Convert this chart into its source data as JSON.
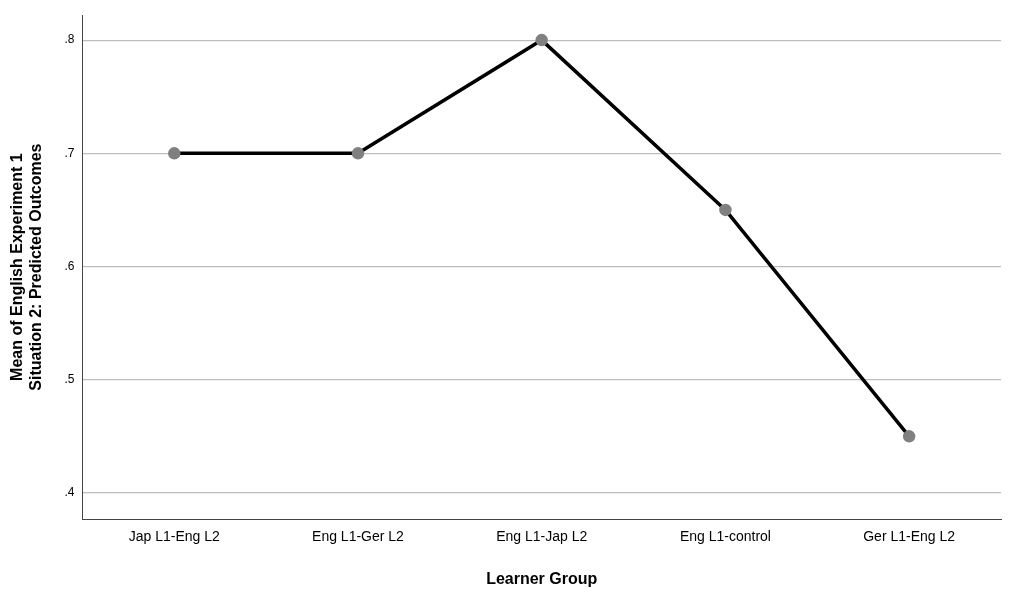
{
  "chart_data": {
    "type": "line",
    "xlabel": "Learner Group",
    "ylabel": "Mean of English Experiment 1 Situation 2: Predicted Outcomes",
    "categories": [
      "Jap L1-Eng L2",
      "Eng L1-Ger L2",
      "Eng L1-Jap L2",
      "Eng L1-control",
      "Ger L1-Eng L2"
    ],
    "series": [
      {
        "color": "#000000",
        "values": [
          0.7,
          0.7,
          0.8,
          0.65,
          0.45
        ]
      }
    ],
    "ylim": [
      0.377,
      0.822
    ],
    "yticks": [
      {
        "value": 0.4,
        "label": ".4"
      },
      {
        "value": 0.5,
        "label": ".5"
      },
      {
        "value": 0.6,
        "label": ".6"
      },
      {
        "value": 0.7,
        "label": ".7"
      },
      {
        "value": 0.8,
        "label": ".8"
      }
    ],
    "grid": "y",
    "legend": false,
    "marker": "circle",
    "line_style": "solid"
  }
}
